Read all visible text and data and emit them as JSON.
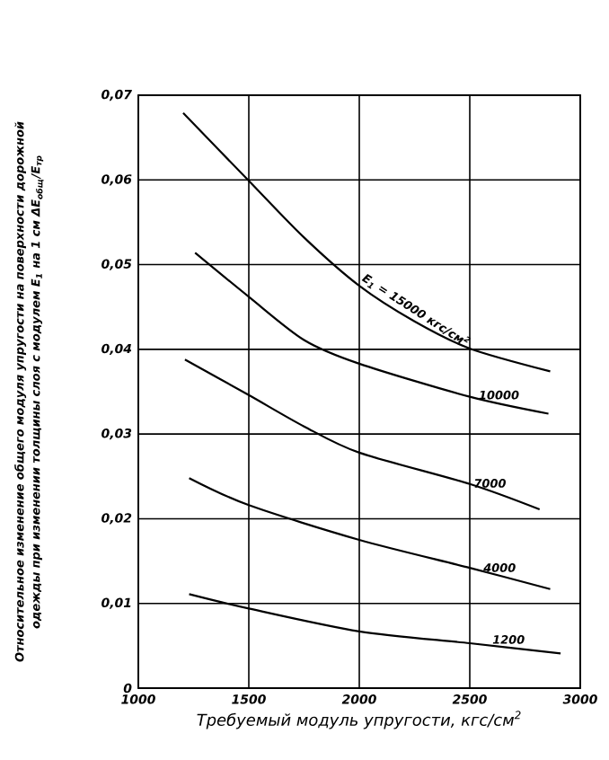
{
  "chart_data": {
    "type": "line",
    "xlabel": "Требуемый модуль упругости, кгс/см$^{2}$",
    "ylabel": "Относительное изменение общего модуля упругости на поверхности дорожной одежды при изменении толщины слоя с модулем E$_{1}$ на 1 см ΔE$_{общ}$/E$_{тр}$",
    "xlim": [
      1000,
      3000
    ],
    "ylim": [
      0,
      0.07
    ],
    "xticks": [
      1000,
      1500,
      2000,
      2500,
      3000
    ],
    "yticks": [
      0,
      {
        "value": 0.01,
        "label": "0,01"
      },
      {
        "value": 0.02,
        "label": "0,02"
      },
      {
        "value": 0.03,
        "label": "0,03"
      },
      {
        "value": 0.04,
        "label": "0,04"
      },
      {
        "value": 0.05,
        "label": "0,05"
      },
      {
        "value": 0.06,
        "label": "0,06"
      },
      {
        "value": 0.07,
        "label": "0,07"
      }
    ],
    "grid": true,
    "marker": "none",
    "line_style": "solid",
    "series": [
      {
        "name": "E$_{1}$ = 15000 кгс/см$^{2}$",
        "color": "#000000",
        "x": [
          1203,
          1500,
          1750,
          2000,
          2250,
          2500,
          2864
        ],
        "values": [
          0.0679,
          0.0599,
          0.0532,
          0.0475,
          0.0433,
          0.0401,
          0.0374
        ]
      },
      {
        "name": "10000",
        "color": "#000000",
        "x": [
          1257,
          1500,
          1750,
          2000,
          2500,
          2856
        ],
        "values": [
          0.0514,
          0.0462,
          0.0411,
          0.0383,
          0.0344,
          0.0324
        ]
      },
      {
        "name": "7000",
        "color": "#000000",
        "x": [
          1211,
          1500,
          1750,
          2000,
          2500,
          2816
        ],
        "values": [
          0.0388,
          0.0346,
          0.0309,
          0.0278,
          0.0241,
          0.0211
        ]
      },
      {
        "name": "4000",
        "color": "#000000",
        "x": [
          1230,
          1500,
          2000,
          2500,
          2864
        ],
        "values": [
          0.0248,
          0.0216,
          0.0175,
          0.0142,
          0.0117
        ]
      },
      {
        "name": "1200",
        "color": "#000000",
        "x": [
          1230,
          1500,
          2000,
          2500,
          2911
        ],
        "values": [
          0.0111,
          0.0094,
          0.0067,
          0.0053,
          0.0041
        ]
      }
    ]
  }
}
